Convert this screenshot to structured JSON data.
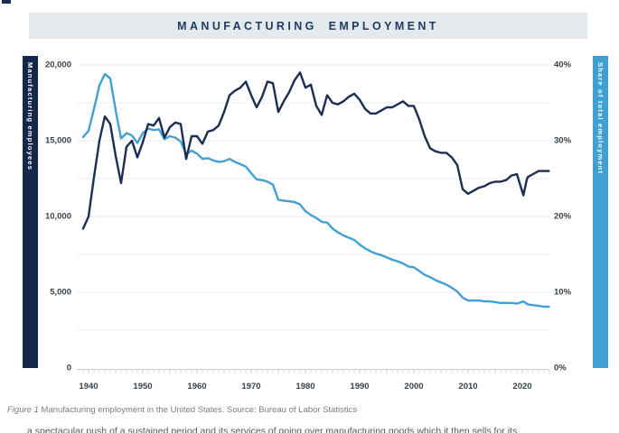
{
  "title": {
    "text": "MANUFACTURING EMPLOYMENT"
  },
  "left_axis_bar": {
    "label": "Manufacturing employees"
  },
  "right_axis_bar": {
    "label": "Share of total employment"
  },
  "caption": {
    "figure_label": "Figure 1",
    "text": " Manufacturing employment in the United States. Source: Bureau of Labor Statistics"
  },
  "body_text_clipped": "a spectacular push of a sustained period and its services of going over manufacturing goods which it then sells for its",
  "colors": {
    "navy": "#1c2e52",
    "blue": "#41a1d5",
    "band_bg": "#e4e9ed",
    "grid": "#e8ecef",
    "axis": "#c6d0d8",
    "tick_label": "#39414c",
    "caption_gray": "#7b7e82"
  },
  "chart_data": {
    "type": "line",
    "title": "MANUFACTURING EMPLOYMENT",
    "grid": "horizontal, minor steps, on",
    "legend": "none",
    "left_axis": {
      "label": "Manufacturing employees",
      "tick_labels": [
        "20,000",
        "15,000",
        "10,000",
        "5,000",
        "0"
      ],
      "range": [
        0,
        20000
      ],
      "minor_step": 2500
    },
    "right_axis": {
      "label": "Share of total employment",
      "tick_labels": [
        "40%",
        "30%",
        "20%",
        "10%",
        "0%"
      ],
      "range": [
        0,
        40
      ],
      "minor_step": 5
    },
    "x_axis": {
      "tick_labels": [
        "1940",
        "1950",
        "1960",
        "1970",
        "1980",
        "1990",
        "2000",
        "2010",
        "2020"
      ],
      "range": [
        1939,
        2025
      ],
      "minor_tick_every_years": 1
    },
    "x": [
      1939,
      1940,
      1941,
      1942,
      1943,
      1944,
      1945,
      1946,
      1947,
      1948,
      1949,
      1950,
      1951,
      1952,
      1953,
      1954,
      1955,
      1956,
      1957,
      1958,
      1959,
      1960,
      1961,
      1962,
      1963,
      1964,
      1965,
      1966,
      1967,
      1968,
      1969,
      1970,
      1971,
      1972,
      1973,
      1974,
      1975,
      1976,
      1977,
      1978,
      1979,
      1980,
      1981,
      1982,
      1983,
      1984,
      1985,
      1986,
      1987,
      1988,
      1989,
      1990,
      1991,
      1992,
      1993,
      1994,
      1995,
      1996,
      1997,
      1998,
      1999,
      2000,
      2001,
      2002,
      2003,
      2004,
      2005,
      2006,
      2007,
      2008,
      2009,
      2010,
      2011,
      2012,
      2013,
      2014,
      2015,
      2016,
      2017,
      2018,
      2019,
      2020.2,
      2020.8,
      2021,
      2022,
      2023,
      2024,
      2024.9
    ],
    "series": [
      {
        "name": "Manufacturing employees",
        "axis": "left",
        "unit": "thousands",
        "values": [
          9200,
          10000,
          12600,
          15000,
          16600,
          16100,
          14000,
          12200,
          14600,
          15000,
          13900,
          14900,
          16100,
          16000,
          16500,
          15200,
          15900,
          16200,
          16100,
          13800,
          15300,
          15300,
          14800,
          15600,
          15700,
          16000,
          16900,
          18000,
          18300,
          18500,
          18900,
          18000,
          17200,
          17900,
          18900,
          18800,
          16900,
          17600,
          18200,
          19000,
          19500,
          18500,
          18700,
          17300,
          16700,
          18000,
          17500,
          17400,
          17600,
          17900,
          18100,
          17700,
          17100,
          16800,
          16800,
          17000,
          17200,
          17200,
          17400,
          17600,
          17300,
          17300,
          16400,
          15300,
          14500,
          14300,
          14200,
          14200,
          13900,
          13400,
          11800,
          11500,
          11700,
          11900,
          12000,
          12200,
          12300,
          12300,
          12400,
          12700,
          12800,
          11400,
          12400,
          12600,
          12800,
          13000,
          13000,
          13000
        ]
      },
      {
        "name": "Share of total employment",
        "axis": "right",
        "unit": "percent",
        "values": [
          30.5,
          31.3,
          34.2,
          37.3,
          38.8,
          38.2,
          34.0,
          30.3,
          31.0,
          30.7,
          29.7,
          31.0,
          31.6,
          31.4,
          31.5,
          30.2,
          30.6,
          30.4,
          29.9,
          28.2,
          28.7,
          28.3,
          27.6,
          27.7,
          27.4,
          27.2,
          27.3,
          27.6,
          27.2,
          26.9,
          26.6,
          25.7,
          24.9,
          24.8,
          24.6,
          24.2,
          22.2,
          22.1,
          22.0,
          21.9,
          21.6,
          20.7,
          20.2,
          19.8,
          19.3,
          19.2,
          18.4,
          17.9,
          17.5,
          17.2,
          16.9,
          16.3,
          15.8,
          15.4,
          15.1,
          14.9,
          14.6,
          14.3,
          14.1,
          13.8,
          13.4,
          13.3,
          12.8,
          12.3,
          12.0,
          11.6,
          11.3,
          11.0,
          10.6,
          10.1,
          9.3,
          8.9,
          8.9,
          8.9,
          8.8,
          8.8,
          8.7,
          8.6,
          8.6,
          8.6,
          8.5,
          8.8,
          8.5,
          8.4,
          8.3,
          8.2,
          8.1,
          8.1
        ]
      }
    ]
  }
}
